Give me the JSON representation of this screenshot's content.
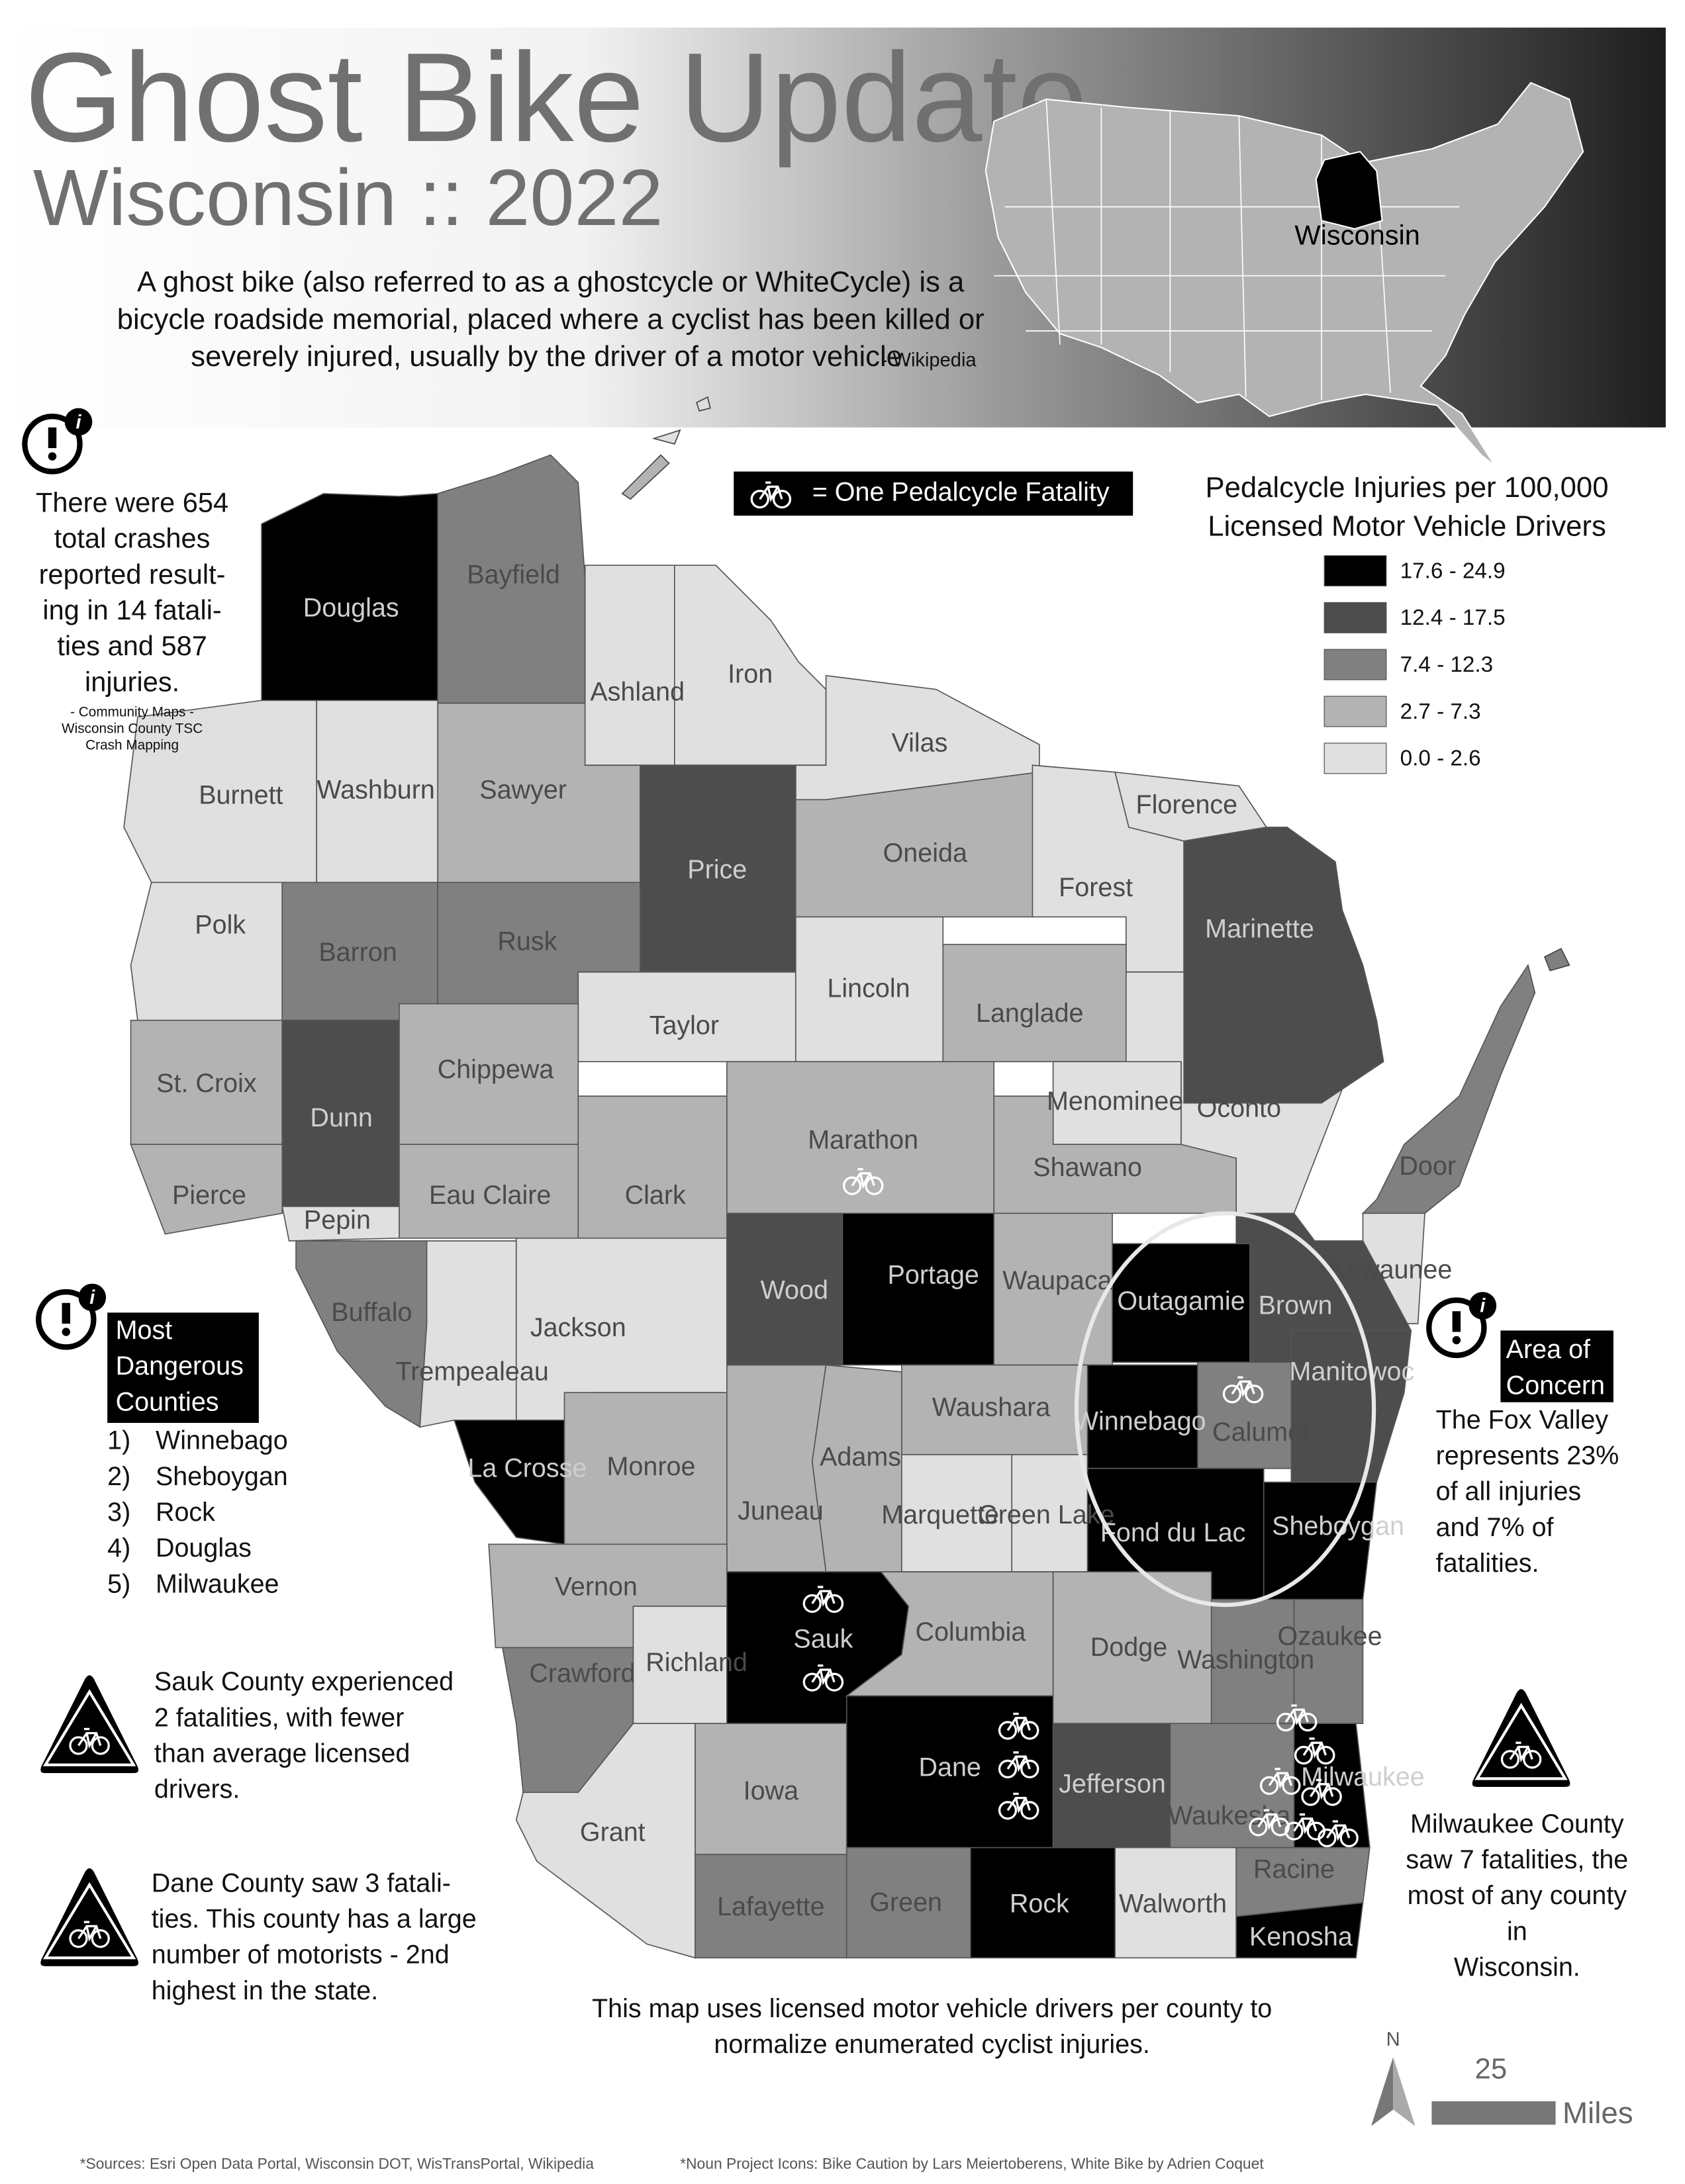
{
  "header": {
    "title": "Ghost Bike Update",
    "subtitle": "Wisconsin :: 2022",
    "description": [
      "A ghost bike (also referred to as a ghostcycle or WhiteCycle) is a",
      "bicycle roadside memorial, placed where a cyclist has been killed or",
      "severely injured, usually by the driver of a motor vehicle."
    ],
    "description_source": "- Wikipedia",
    "inset_label": "Wisconsin"
  },
  "crash_note": {
    "lines": [
      "There were 654",
      "total crashes",
      "reported result-",
      "ing in 14 fatali-",
      "ties and 587",
      "injuries."
    ],
    "source": [
      "- Community Maps -",
      "Wisconsin County TSC",
      "Crash Mapping"
    ]
  },
  "icon_key": "= One Pedalcycle Fatality",
  "legend": {
    "title": [
      "Pedalcycle Injuries per 100,000",
      "Licensed Motor Vehicle Drivers"
    ],
    "items": [
      {
        "label": "17.6 - 24.9",
        "color": "#000000"
      },
      {
        "label": "12.4 - 17.5",
        "color": "#4d4d4d"
      },
      {
        "label": "7.4 - 12.3",
        "color": "#808080"
      },
      {
        "label": "2.7 - 7.3",
        "color": "#b3b3b3"
      },
      {
        "label": "0.0 - 2.6",
        "color": "#e0e0e0"
      }
    ]
  },
  "counties": [
    {
      "name": "Douglas",
      "color": "#000000"
    },
    {
      "name": "Bayfield",
      "color": "#808080"
    },
    {
      "name": "Ashland",
      "color": "#e0e0e0"
    },
    {
      "name": "Iron",
      "color": "#e0e0e0"
    },
    {
      "name": "Vilas",
      "color": "#e0e0e0"
    },
    {
      "name": "Burnett",
      "color": "#e0e0e0"
    },
    {
      "name": "Washburn",
      "color": "#e0e0e0"
    },
    {
      "name": "Sawyer",
      "color": "#b3b3b3"
    },
    {
      "name": "Price",
      "color": "#4d4d4d"
    },
    {
      "name": "Oneida",
      "color": "#b3b3b3"
    },
    {
      "name": "Forest",
      "color": "#e0e0e0"
    },
    {
      "name": "Florence",
      "color": "#e0e0e0"
    },
    {
      "name": "Marinette",
      "color": "#4d4d4d"
    },
    {
      "name": "Polk",
      "color": "#e0e0e0"
    },
    {
      "name": "Barron",
      "color": "#808080"
    },
    {
      "name": "Rusk",
      "color": "#808080"
    },
    {
      "name": "Taylor",
      "color": "#e0e0e0"
    },
    {
      "name": "Lincoln",
      "color": "#e0e0e0"
    },
    {
      "name": "Langlade",
      "color": "#b3b3b3"
    },
    {
      "name": "Menominee",
      "color": "#e0e0e0"
    },
    {
      "name": "Oconto",
      "color": "#e0e0e0"
    },
    {
      "name": "St. Croix",
      "color": "#b3b3b3"
    },
    {
      "name": "Dunn",
      "color": "#4d4d4d"
    },
    {
      "name": "Chippewa",
      "color": "#b3b3b3"
    },
    {
      "name": "Pierce",
      "color": "#b3b3b3"
    },
    {
      "name": "Eau Claire",
      "color": "#b3b3b3"
    },
    {
      "name": "Pepin",
      "color": "#e0e0e0"
    },
    {
      "name": "Clark",
      "color": "#b3b3b3"
    },
    {
      "name": "Marathon",
      "color": "#b3b3b3",
      "fatalities": 1
    },
    {
      "name": "Shawano",
      "color": "#b3b3b3"
    },
    {
      "name": "Door",
      "color": "#808080"
    },
    {
      "name": "Kewaunee",
      "color": "#e0e0e0"
    },
    {
      "name": "Buffalo",
      "color": "#808080"
    },
    {
      "name": "Jackson",
      "color": "#e0e0e0"
    },
    {
      "name": "Trempealeau",
      "color": "#e0e0e0"
    },
    {
      "name": "Wood",
      "color": "#4d4d4d"
    },
    {
      "name": "Portage",
      "color": "#000000"
    },
    {
      "name": "Waupaca",
      "color": "#b3b3b3"
    },
    {
      "name": "Outagamie",
      "color": "#000000"
    },
    {
      "name": "Brown",
      "color": "#4d4d4d"
    },
    {
      "name": "Calumet",
      "color": "#808080",
      "fatalities": 1
    },
    {
      "name": "Manitowoc",
      "color": "#4d4d4d"
    },
    {
      "name": "La Crosse",
      "color": "#000000"
    },
    {
      "name": "Monroe",
      "color": "#b3b3b3"
    },
    {
      "name": "Juneau",
      "color": "#b3b3b3"
    },
    {
      "name": "Adams",
      "color": "#b3b3b3"
    },
    {
      "name": "Waushara",
      "color": "#b3b3b3"
    },
    {
      "name": "Marquette",
      "color": "#e0e0e0"
    },
    {
      "name": "Green Lake",
      "color": "#e0e0e0"
    },
    {
      "name": "Winnebago",
      "color": "#000000"
    },
    {
      "name": "Fond du Lac",
      "color": "#000000"
    },
    {
      "name": "Sheboygan",
      "color": "#000000"
    },
    {
      "name": "Vernon",
      "color": "#b3b3b3"
    },
    {
      "name": "Crawford",
      "color": "#808080"
    },
    {
      "name": "Richland",
      "color": "#e0e0e0"
    },
    {
      "name": "Sauk",
      "color": "#000000",
      "fatalities": 2
    },
    {
      "name": "Columbia",
      "color": "#b3b3b3"
    },
    {
      "name": "Dodge",
      "color": "#b3b3b3"
    },
    {
      "name": "Washington",
      "color": "#808080"
    },
    {
      "name": "Ozaukee",
      "color": "#808080"
    },
    {
      "name": "Grant",
      "color": "#e0e0e0"
    },
    {
      "name": "Iowa",
      "color": "#b3b3b3"
    },
    {
      "name": "Dane",
      "color": "#000000",
      "fatalities": 3
    },
    {
      "name": "Jefferson",
      "color": "#4d4d4d"
    },
    {
      "name": "Waukesha",
      "color": "#808080"
    },
    {
      "name": "Milwaukee",
      "color": "#000000",
      "fatalities": 7
    },
    {
      "name": "Lafayette",
      "color": "#808080"
    },
    {
      "name": "Green",
      "color": "#808080"
    },
    {
      "name": "Rock",
      "color": "#000000"
    },
    {
      "name": "Walworth",
      "color": "#e0e0e0"
    },
    {
      "name": "Racine",
      "color": "#808080"
    },
    {
      "name": "Kenosha",
      "color": "#000000"
    }
  ],
  "dangerous": {
    "title": [
      "Most",
      "Dangerous",
      "Counties"
    ],
    "items": [
      {
        "rank": "1)",
        "name": "Winnebago"
      },
      {
        "rank": "2)",
        "name": "Sheboygan"
      },
      {
        "rank": "3)",
        "name": "Rock"
      },
      {
        "rank": "4)",
        "name": "Douglas"
      },
      {
        "rank": "5)",
        "name": "Milwaukee"
      }
    ]
  },
  "sauk_note": [
    "Sauk County experienced",
    "2 fatalities, with fewer",
    "than average licensed",
    "drivers."
  ],
  "dane_note": [
    "Dane County saw 3 fatali-",
    "ties.  This county has a large",
    "number of motorists -  2nd",
    "highest in the state."
  ],
  "concern": {
    "title": [
      "Area of",
      "Concern"
    ],
    "lines": [
      "The Fox Valley",
      "represents 23%",
      "of all injuries",
      "and 7% of",
      "fatalities."
    ]
  },
  "milwaukee_note": [
    "Milwaukee County",
    "saw 7 fatalities, the",
    "most of any county",
    "in",
    "Wisconsin."
  ],
  "footnote": [
    "This map uses licensed motor vehicle drivers per county to",
    "normalize enumerated cyclist injuries."
  ],
  "sources": "*Sources: Esri Open Data Portal, Wisconsin DOT, WisTransPortal, Wikipedia",
  "credits": "*Noun Project Icons: Bike Caution by Lars Meiertoberens, White Bike by Adrien Coquet",
  "scale": {
    "north": "N",
    "distance": "25",
    "unit": "Miles"
  }
}
